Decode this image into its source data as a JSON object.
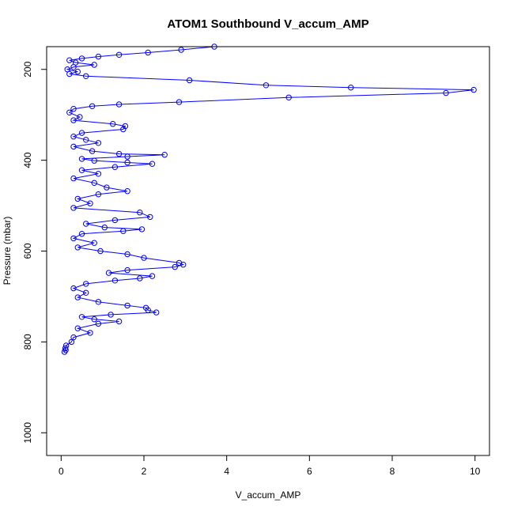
{
  "chart_data": {
    "type": "line",
    "title": "ATOM1 Southbound V_accum_AMP",
    "xlabel": "V_accum_AMP",
    "ylabel": "Pressure (mbar)",
    "xlim": [
      -0.35,
      10.35
    ],
    "ylim": [
      150,
      1050
    ],
    "y_reversed": true,
    "grid": false,
    "x_ticks": [
      "0",
      "2",
      "4",
      "6",
      "8",
      "10"
    ],
    "y_ticks": [
      "200",
      "400",
      "600",
      "800",
      "1000"
    ],
    "colors": {
      "series": "#0000ff"
    },
    "series": [
      {
        "marker": "open-circle",
        "points": [
          [
            3.7,
            150
          ],
          [
            2.9,
            157
          ],
          [
            2.1,
            163
          ],
          [
            1.4,
            168
          ],
          [
            0.9,
            172
          ],
          [
            0.5,
            176
          ],
          [
            0.2,
            180
          ],
          [
            0.35,
            185
          ],
          [
            0.8,
            190
          ],
          [
            0.3,
            195
          ],
          [
            0.15,
            200
          ],
          [
            0.4,
            205
          ],
          [
            0.2,
            210
          ],
          [
            0.6,
            215
          ],
          [
            3.1,
            224
          ],
          [
            4.95,
            235
          ],
          [
            7.0,
            240
          ],
          [
            9.97,
            245
          ],
          [
            9.3,
            252
          ],
          [
            5.5,
            262
          ],
          [
            2.85,
            272
          ],
          [
            1.4,
            277
          ],
          [
            0.75,
            281
          ],
          [
            0.3,
            287
          ],
          [
            0.2,
            295
          ],
          [
            0.45,
            305
          ],
          [
            0.3,
            312
          ],
          [
            1.25,
            320
          ],
          [
            1.55,
            325
          ],
          [
            1.5,
            332
          ],
          [
            0.5,
            340
          ],
          [
            0.3,
            348
          ],
          [
            0.6,
            355
          ],
          [
            0.9,
            362
          ],
          [
            0.3,
            370
          ],
          [
            0.75,
            380
          ],
          [
            1.4,
            386
          ],
          [
            2.5,
            388
          ],
          [
            1.6,
            392
          ],
          [
            0.5,
            397
          ],
          [
            0.8,
            401
          ],
          [
            1.6,
            405
          ],
          [
            2.2,
            408
          ],
          [
            1.3,
            415
          ],
          [
            0.5,
            422
          ],
          [
            0.9,
            430
          ],
          [
            0.3,
            440
          ],
          [
            0.8,
            450
          ],
          [
            1.1,
            460
          ],
          [
            1.6,
            468
          ],
          [
            0.9,
            475
          ],
          [
            0.4,
            485
          ],
          [
            0.7,
            495
          ],
          [
            0.3,
            505
          ],
          [
            1.9,
            515
          ],
          [
            2.15,
            525
          ],
          [
            1.3,
            532
          ],
          [
            0.6,
            540
          ],
          [
            1.05,
            548
          ],
          [
            1.95,
            552
          ],
          [
            1.5,
            556
          ],
          [
            0.5,
            562
          ],
          [
            0.3,
            572
          ],
          [
            0.8,
            582
          ],
          [
            0.4,
            592
          ],
          [
            0.95,
            600
          ],
          [
            1.6,
            607
          ],
          [
            2.0,
            615
          ],
          [
            2.85,
            626
          ],
          [
            2.95,
            630
          ],
          [
            2.75,
            635
          ],
          [
            1.6,
            642
          ],
          [
            1.15,
            648
          ],
          [
            2.2,
            655
          ],
          [
            1.9,
            660
          ],
          [
            1.3,
            665
          ],
          [
            0.6,
            672
          ],
          [
            0.3,
            682
          ],
          [
            0.6,
            692
          ],
          [
            0.4,
            702
          ],
          [
            0.9,
            712
          ],
          [
            1.6,
            720
          ],
          [
            2.05,
            725
          ],
          [
            2.1,
            730
          ],
          [
            2.3,
            735
          ],
          [
            1.2,
            740
          ],
          [
            0.5,
            745
          ],
          [
            0.8,
            750
          ],
          [
            1.4,
            755
          ],
          [
            0.9,
            760
          ],
          [
            0.4,
            770
          ],
          [
            0.7,
            780
          ],
          [
            0.3,
            790
          ],
          [
            0.25,
            800
          ],
          [
            0.12,
            808
          ],
          [
            0.1,
            814
          ],
          [
            0.11,
            818
          ],
          [
            0.08,
            822
          ]
        ]
      }
    ]
  }
}
